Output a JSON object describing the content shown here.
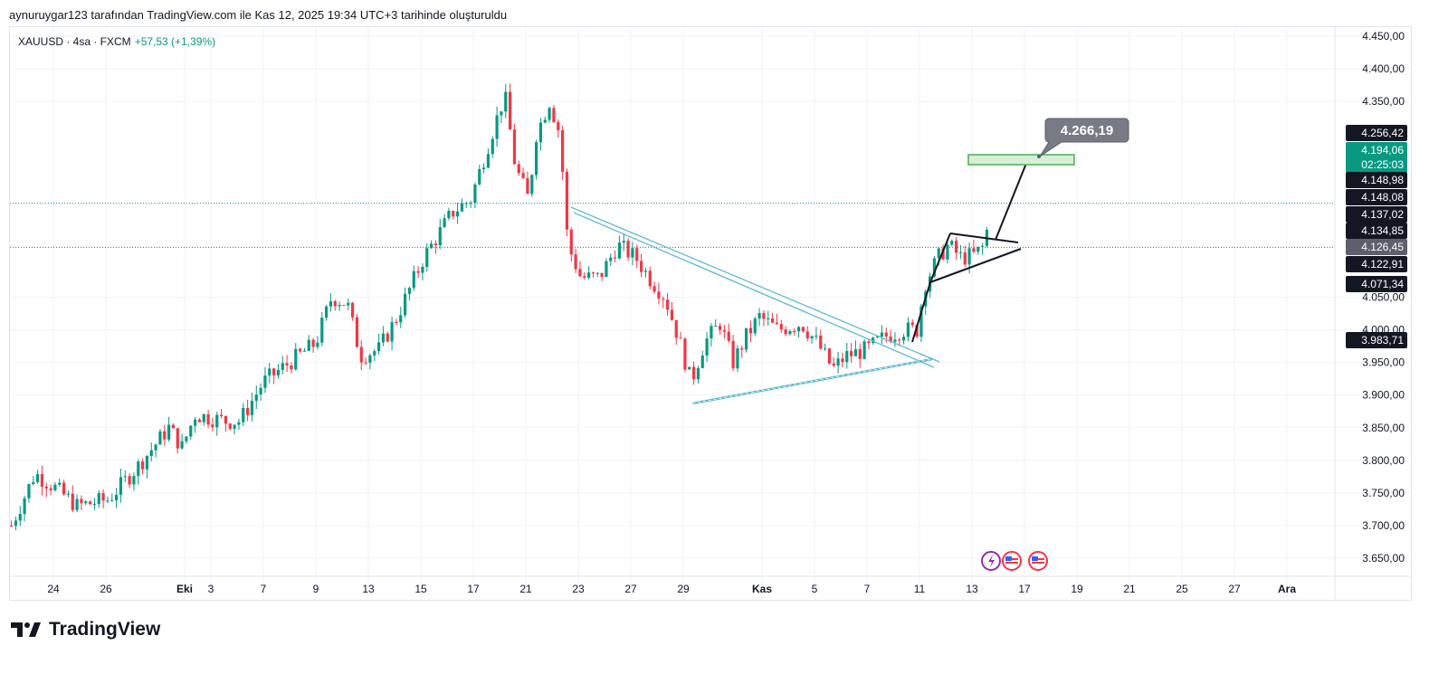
{
  "caption": "aynuruygar123 tarafından TradingView.com ile Kas 12, 2025 19:34 UTC+3 tarihinde oluşturuldu",
  "legend": {
    "symbol": "XAUUSD · 4sa · FXCM",
    "change": "+57,53 (+1,39%)"
  },
  "logo": "TradingView",
  "colors": {
    "up": "#089981",
    "down": "#f23645",
    "channel": "#5fb8d4",
    "target": "#a5d6a7"
  },
  "callout": "4.266,19",
  "chart_data": {
    "type": "candlestick",
    "title": "XAUUSD · 4sa · FXCM",
    "ylim": [
      3620,
      4470
    ],
    "y_ticks": [
      {
        "v": 4450,
        "l": "4.450,00"
      },
      {
        "v": 4400,
        "l": "4.400,00"
      },
      {
        "v": 4350,
        "l": "4.350,00"
      },
      {
        "v": 4050,
        "l": "4.050,00"
      },
      {
        "v": 4000,
        "l": "4.000,00"
      },
      {
        "v": 3950,
        "l": "3.950,00"
      },
      {
        "v": 3900,
        "l": "3.900,00"
      },
      {
        "v": 3850,
        "l": "3.850,00"
      },
      {
        "v": 3800,
        "l": "3.800,00"
      },
      {
        "v": 3750,
        "l": "3.750,00"
      },
      {
        "v": 3700,
        "l": "3.700,00"
      },
      {
        "v": 3650,
        "l": "3.650,00"
      }
    ],
    "x_ticks": [
      {
        "i": 0,
        "l": "24"
      },
      {
        "i": 2,
        "l": "26"
      },
      {
        "i": 5,
        "l": "Eki",
        "bold": true
      },
      {
        "i": 6,
        "l": "3"
      },
      {
        "i": 8,
        "l": "7"
      },
      {
        "i": 10,
        "l": "9"
      },
      {
        "i": 12,
        "l": "13"
      },
      {
        "i": 14,
        "l": "15"
      },
      {
        "i": 16,
        "l": "17"
      },
      {
        "i": 18,
        "l": "21"
      },
      {
        "i": 20,
        "l": "23"
      },
      {
        "i": 22,
        "l": "27"
      },
      {
        "i": 24,
        "l": "29"
      },
      {
        "i": 27,
        "l": "Kas",
        "bold": true
      },
      {
        "i": 29,
        "l": "5"
      },
      {
        "i": 31,
        "l": "7"
      },
      {
        "i": 33,
        "l": "11"
      },
      {
        "i": 35,
        "l": "13"
      },
      {
        "i": 37,
        "l": "17"
      },
      {
        "i": 39,
        "l": "19"
      },
      {
        "i": 41,
        "l": "21"
      },
      {
        "i": 43,
        "l": "25"
      },
      {
        "i": 45,
        "l": "27"
      },
      {
        "i": 47,
        "l": "Ara",
        "bold": true
      }
    ],
    "close_path": [
      [
        -1.6,
        3700
      ],
      [
        -0.7,
        3780
      ],
      [
        0,
        3760
      ],
      [
        0.9,
        3730
      ],
      [
        2.1,
        3740
      ],
      [
        3.2,
        3790
      ],
      [
        4.4,
        3850
      ],
      [
        4.9,
        3820
      ],
      [
        5.4,
        3870
      ],
      [
        6.6,
        3860
      ],
      [
        7.1,
        3860
      ],
      [
        8,
        3920
      ],
      [
        9,
        3950
      ],
      [
        10,
        3980
      ],
      [
        10.6,
        4050
      ],
      [
        11.2,
        4040
      ],
      [
        11.7,
        3960
      ],
      [
        12.4,
        3970
      ],
      [
        13.1,
        4020
      ],
      [
        14.1,
        4110
      ],
      [
        15.2,
        4180
      ],
      [
        15.9,
        4200
      ],
      [
        16.7,
        4300
      ],
      [
        17.2,
        4360
      ],
      [
        17.6,
        4250
      ],
      [
        18.1,
        4200
      ],
      [
        18.4,
        4300
      ],
      [
        18.9,
        4350
      ],
      [
        19.3,
        4300
      ],
      [
        19.6,
        4130
      ],
      [
        20.1,
        4080
      ],
      [
        20.8,
        4080
      ],
      [
        21.5,
        4130
      ],
      [
        22.2,
        4110
      ],
      [
        22.7,
        4080
      ],
      [
        23.3,
        4050
      ],
      [
        23.8,
        3990
      ],
      [
        24.3,
        3920
      ],
      [
        24.8,
        3980
      ],
      [
        25.4,
        4010
      ],
      [
        25.9,
        3950
      ],
      [
        26.4,
        3990
      ],
      [
        26.9,
        4020
      ],
      [
        27.6,
        4000
      ],
      [
        28.5,
        4010
      ],
      [
        29.1,
        3980
      ],
      [
        29.7,
        3940
      ],
      [
        30.2,
        3960
      ],
      [
        31,
        3970
      ],
      [
        31.7,
        3990
      ],
      [
        32.4,
        4000
      ],
      [
        32.9,
        4000
      ],
      [
        33.2,
        4070
      ],
      [
        33.7,
        4110
      ],
      [
        34.1,
        4130
      ],
      [
        34.6,
        4110
      ],
      [
        35.1,
        4115
      ],
      [
        35.5,
        4130
      ],
      [
        35.7,
        4194
      ]
    ],
    "price_labels": [
      {
        "v": 4256.42,
        "l": "4.256,42",
        "bg": "#131722"
      },
      {
        "v": 4194.06,
        "l": "4.194,06",
        "sub": "02:25:03",
        "bg": "#089981"
      },
      {
        "v": 4148.98,
        "l": "4.148,98",
        "bg": "#131722"
      },
      {
        "v": 4148.08,
        "l": "4.148,08",
        "bg": "#131722"
      },
      {
        "v": 4137.02,
        "l": "4.137,02",
        "bg": "#131722"
      },
      {
        "v": 4134.85,
        "l": "4.134,85",
        "bg": "#131722"
      },
      {
        "v": 4126.45,
        "l": "4.126,45",
        "bg": "#5d606b"
      },
      {
        "v": 4122.91,
        "l": "4.122,91",
        "bg": "#131722"
      },
      {
        "v": 4071.34,
        "l": "4.071,34",
        "bg": "#131722"
      },
      {
        "v": 3983.71,
        "l": "3.983,71",
        "bg": "#131722"
      }
    ]
  }
}
